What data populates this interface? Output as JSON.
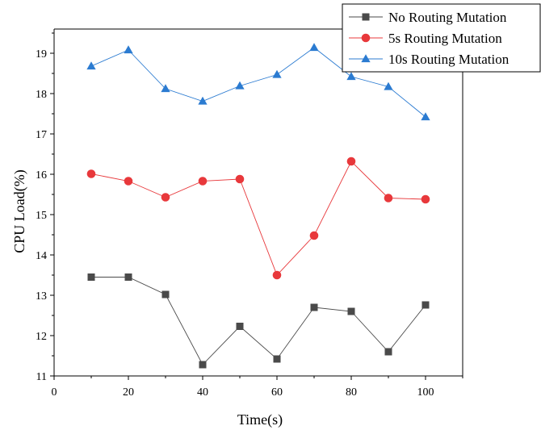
{
  "chart_data": {
    "type": "line",
    "xlabel": "Time(s)",
    "ylabel": "CPU Load(%)",
    "xlim": [
      0,
      110
    ],
    "ylim": [
      11,
      19.6
    ],
    "x_ticks": [
      0,
      20,
      40,
      60,
      80,
      100
    ],
    "y_ticks": [
      11,
      12,
      13,
      14,
      15,
      16,
      17,
      18,
      19
    ],
    "grid": false,
    "legend_position": "top-right",
    "x": [
      10,
      20,
      30,
      40,
      50,
      60,
      70,
      80,
      90,
      100
    ],
    "series": [
      {
        "name": "No Routing Mutation",
        "marker": "square",
        "color": "#4a4a4a",
        "values": [
          13.45,
          13.45,
          13.02,
          11.28,
          12.23,
          11.42,
          12.7,
          12.6,
          11.6,
          12.76
        ]
      },
      {
        "name": "5s Routing Mutation",
        "marker": "circle",
        "color": "#e8383b",
        "values": [
          16.01,
          15.83,
          15.43,
          15.83,
          15.88,
          13.5,
          14.48,
          16.32,
          15.41,
          15.38
        ]
      },
      {
        "name": "10s Routing Mutation",
        "marker": "triangle",
        "color": "#2b7bd1",
        "values": [
          18.68,
          19.08,
          18.12,
          17.81,
          18.19,
          18.47,
          19.14,
          18.42,
          18.17,
          17.42
        ]
      }
    ]
  }
}
